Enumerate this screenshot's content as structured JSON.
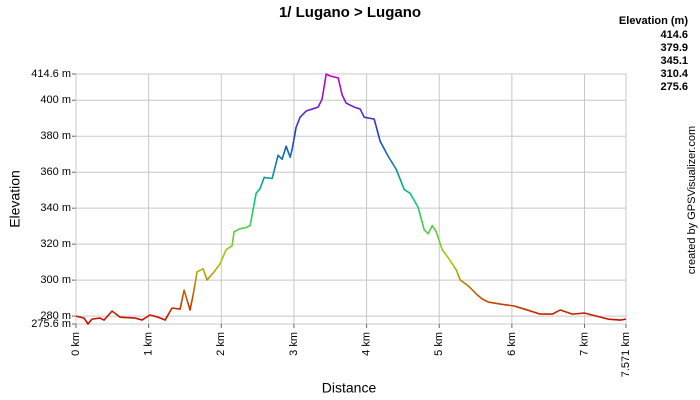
{
  "chart_data": {
    "type": "line",
    "title": "1/ Lugano > Lugano",
    "x_label": "Distance",
    "y_label": "Elevation",
    "credit": "created by GPSVisualizer.com",
    "legend_title": "Elevation (m)",
    "color_scale": [
      {
        "value": 414.6,
        "color": "#cc00cc"
      },
      {
        "value": 379.9,
        "color": "#1a3fcc"
      },
      {
        "value": 345.1,
        "color": "#00cc88"
      },
      {
        "value": 310.4,
        "color": "#aacc00"
      },
      {
        "value": 275.6,
        "color": "#cc0000"
      }
    ],
    "xlim": [
      0,
      7.571
    ],
    "ylim": [
      275.6,
      414.6
    ],
    "xticks": [
      {
        "value": 0,
        "label": "0 km"
      },
      {
        "value": 1,
        "label": "1 km"
      },
      {
        "value": 2,
        "label": "2 km"
      },
      {
        "value": 3,
        "label": "3 km"
      },
      {
        "value": 4,
        "label": "4 km"
      },
      {
        "value": 5,
        "label": "5 km"
      },
      {
        "value": 6,
        "label": "6 km"
      },
      {
        "value": 7,
        "label": "7 km"
      },
      {
        "value": 7.571,
        "label": "7.571 km"
      }
    ],
    "yticks": [
      {
        "value": 275.6,
        "label": "275.6 m"
      },
      {
        "value": 280,
        "label": "280 m"
      },
      {
        "value": 300,
        "label": "300 m"
      },
      {
        "value": 320,
        "label": "320 m"
      },
      {
        "value": 340,
        "label": "340 m"
      },
      {
        "value": 360,
        "label": "360 m"
      },
      {
        "value": 380,
        "label": "380 m"
      },
      {
        "value": 400,
        "label": "400 m"
      },
      {
        "value": 414.6,
        "label": "414.6 m"
      }
    ],
    "grid": true,
    "x": [
      0,
      0.11,
      0.165,
      0.22,
      0.33,
      0.386,
      0.496,
      0.606,
      0.813,
      0.909,
      1.019,
      1.129,
      1.226,
      1.322,
      1.433,
      1.488,
      1.529,
      1.57,
      1.612,
      1.667,
      1.749,
      1.804,
      1.901,
      1.983,
      2.066,
      2.149,
      2.176,
      2.259,
      2.342,
      2.397,
      2.479,
      2.534,
      2.59,
      2.7,
      2.782,
      2.837,
      2.893,
      2.948,
      2.975,
      3.03,
      3.085,
      3.168,
      3.251,
      3.333,
      3.388,
      3.444,
      3.499,
      3.609,
      3.664,
      3.719,
      3.829,
      3.912,
      3.967,
      4.105,
      4.187,
      4.298,
      4.408,
      4.518,
      4.601,
      4.711,
      4.793,
      4.848,
      4.904,
      4.959,
      5.041,
      5.124,
      5.234,
      5.289,
      5.399,
      5.51,
      5.592,
      5.675,
      5.84,
      6.033,
      6.171,
      6.391,
      6.556,
      6.667,
      6.832,
      6.997,
      7.163,
      7.328,
      7.493,
      7.571
    ],
    "values": [
      280,
      278.9,
      275.6,
      278.3,
      278.9,
      277.8,
      282.8,
      279.4,
      278.9,
      277.8,
      280.6,
      279.4,
      277.8,
      284.5,
      283.9,
      294.5,
      288.9,
      283.4,
      291.7,
      304.6,
      306.3,
      300.1,
      304.6,
      309.1,
      316.9,
      319.1,
      326.9,
      328.6,
      329.2,
      330.3,
      348.2,
      350.9,
      357.1,
      356.5,
      369.4,
      367.2,
      374.4,
      368.3,
      372.7,
      385,
      390.6,
      394,
      395.1,
      396.2,
      400.7,
      414.6,
      413.5,
      412.4,
      402.9,
      398.4,
      396.2,
      395.1,
      390.6,
      389.5,
      377.2,
      368.8,
      361.6,
      350.4,
      348.2,
      340.3,
      328,
      325.8,
      330.3,
      326.9,
      316.9,
      312.4,
      305.7,
      300.1,
      296.8,
      292.3,
      289.5,
      287.8,
      286.7,
      285.6,
      283.9,
      281.1,
      281.1,
      283.4,
      281.1,
      281.7,
      280,
      278.3,
      277.8,
      278.3
    ]
  }
}
